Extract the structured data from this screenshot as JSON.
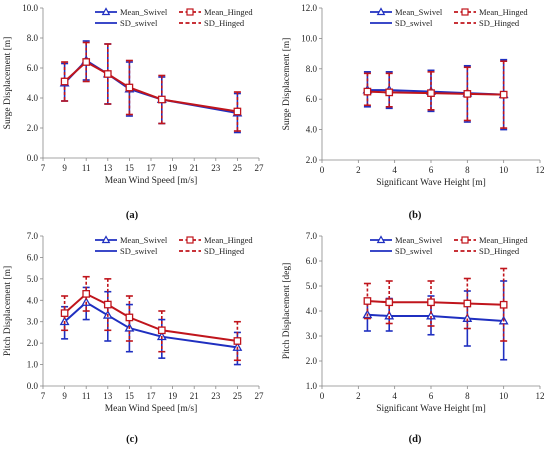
{
  "colors": {
    "swivel": "#1f2fc0",
    "hinged": "#c0151c",
    "axis": "#888888"
  },
  "legend_labels": [
    "Mean_Swivel",
    "Mean_Hinged",
    "SD_swivel",
    "SD_Hinged"
  ],
  "chart_data": [
    {
      "panel_label": "(a)",
      "type": "line",
      "xlabel": "Mean Wind Speed [m/s]",
      "ylabel": "Surge Displacement [m]",
      "xlim": [
        7,
        27
      ],
      "ylim": [
        0,
        10
      ],
      "xticks": [
        "7",
        "9",
        "11",
        "13",
        "15",
        "17",
        "19",
        "21",
        "23",
        "25",
        "27"
      ],
      "yticks": [
        "0.0",
        "2.0",
        "4.0",
        "6.0",
        "8.0",
        "10.0"
      ],
      "x": [
        9,
        11,
        13,
        15,
        18,
        25
      ],
      "series": [
        {
          "name": "Mean_Swivel",
          "values": [
            5.0,
            6.5,
            5.6,
            4.6,
            3.9,
            3.0
          ],
          "sd_low": [
            3.8,
            5.2,
            3.6,
            2.8,
            2.3,
            1.7
          ],
          "sd_high": [
            6.3,
            7.8,
            7.6,
            6.4,
            5.4,
            4.3
          ]
        },
        {
          "name": "Mean_Hinged",
          "values": [
            5.1,
            6.4,
            5.6,
            4.7,
            3.9,
            3.1
          ],
          "sd_low": [
            3.8,
            5.1,
            3.6,
            2.9,
            2.3,
            1.8
          ],
          "sd_high": [
            6.4,
            7.7,
            7.6,
            6.5,
            5.5,
            4.4
          ]
        }
      ]
    },
    {
      "panel_label": "(b)",
      "type": "line",
      "xlabel": "Significant Wave Height  [m]",
      "ylabel": "Surge Displacement [m]",
      "xlim": [
        0,
        12
      ],
      "ylim": [
        2,
        12
      ],
      "xticks": [
        "0",
        "2",
        "4",
        "6",
        "8",
        "10",
        "12"
      ],
      "yticks": [
        "2.0",
        "4.0",
        "6.0",
        "8.0",
        "10.0",
        "12.0"
      ],
      "x": [
        2.5,
        3.7,
        6.0,
        8.0,
        10.0
      ],
      "series": [
        {
          "name": "Mean_Swivel",
          "values": [
            6.6,
            6.6,
            6.5,
            6.4,
            6.3
          ],
          "sd_low": [
            5.5,
            5.4,
            5.2,
            4.5,
            4.0
          ],
          "sd_high": [
            7.8,
            7.8,
            7.9,
            8.2,
            8.6
          ]
        },
        {
          "name": "Mean_Hinged",
          "values": [
            6.5,
            6.45,
            6.4,
            6.35,
            6.3
          ],
          "sd_low": [
            5.6,
            5.5,
            5.3,
            4.6,
            4.1
          ],
          "sd_high": [
            7.7,
            7.7,
            7.8,
            8.1,
            8.5
          ]
        }
      ]
    },
    {
      "panel_label": "(c)",
      "type": "line",
      "xlabel": "Mean Wind Speed [m/s]",
      "ylabel": "Pitch Displacement [m]",
      "xlim": [
        7,
        27
      ],
      "ylim": [
        0,
        7
      ],
      "xticks": [
        "7",
        "9",
        "11",
        "13",
        "15",
        "17",
        "19",
        "21",
        "23",
        "25",
        "27"
      ],
      "yticks": [
        "0.0",
        "1.0",
        "2.0",
        "3.0",
        "4.0",
        "5.0",
        "6.0",
        "7.0"
      ],
      "x": [
        9,
        11,
        13,
        15,
        18,
        25
      ],
      "series": [
        {
          "name": "Mean_Swivel",
          "values": [
            3.0,
            3.9,
            3.3,
            2.7,
            2.3,
            1.8
          ],
          "sd_low": [
            2.2,
            3.1,
            2.1,
            1.6,
            1.3,
            1.0
          ],
          "sd_high": [
            3.7,
            4.6,
            4.4,
            3.8,
            3.1,
            2.5
          ]
        },
        {
          "name": "Mean_Hinged",
          "values": [
            3.4,
            4.3,
            3.8,
            3.2,
            2.6,
            2.1
          ],
          "sd_low": [
            2.6,
            3.5,
            2.6,
            2.1,
            1.6,
            1.2
          ],
          "sd_high": [
            4.2,
            5.1,
            5.0,
            4.2,
            3.5,
            3.0
          ]
        }
      ]
    },
    {
      "panel_label": "(d)",
      "type": "line",
      "xlabel": "Significant Wave Height  [m]",
      "ylabel": "Pitch Displacement [deg]",
      "xlim": [
        0,
        12
      ],
      "ylim": [
        1,
        7
      ],
      "xticks": [
        "0",
        "2",
        "4",
        "6",
        "8",
        "10",
        "12"
      ],
      "yticks": [
        "1.0",
        "2.0",
        "3.0",
        "4.0",
        "5.0",
        "6.0",
        "7.0"
      ],
      "x": [
        2.5,
        3.7,
        6.0,
        8.0,
        10.0
      ],
      "series": [
        {
          "name": "Mean_Swivel",
          "values": [
            3.85,
            3.8,
            3.8,
            3.7,
            3.6
          ],
          "sd_low": [
            3.2,
            3.2,
            3.05,
            2.6,
            2.05
          ],
          "sd_high": [
            4.5,
            4.5,
            4.6,
            4.8,
            5.2
          ]
        },
        {
          "name": "Mean_Hinged",
          "values": [
            4.4,
            4.35,
            4.35,
            4.3,
            4.25
          ],
          "sd_low": [
            3.7,
            3.5,
            3.4,
            3.3,
            2.8
          ],
          "sd_high": [
            5.1,
            5.2,
            5.2,
            5.3,
            5.7
          ]
        }
      ]
    }
  ]
}
